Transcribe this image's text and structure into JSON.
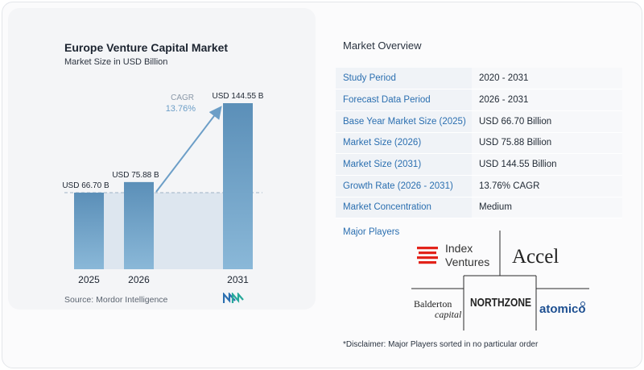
{
  "chart": {
    "title": "Europe Venture Capital Market",
    "subtitle": "Market Size in USD Billion",
    "source": "Source: Mordor Intelligence",
    "cagr_label": "CAGR",
    "cagr_value": "13.76%"
  },
  "chart_data": {
    "type": "bar",
    "title": "Europe Venture Capital Market",
    "subtitle": "Market Size in USD Billion",
    "categories": [
      "2025",
      "2026",
      "2031"
    ],
    "values": [
      66.7,
      75.88,
      144.55
    ],
    "data_labels": [
      "USD 66.70 B",
      "USD 75.88 B",
      "USD 144.55 B"
    ],
    "ylim": [
      0,
      150
    ],
    "annotation": "CAGR 13.76%",
    "colors": {
      "bar": "#5b8fb8",
      "bar_light": "#8ab2d1",
      "band": "#dde6ef",
      "arrow": "#6c9ec7"
    }
  },
  "overview": {
    "title": "Market Overview",
    "rows": [
      {
        "label": "Study Period",
        "value": "2020 - 2031"
      },
      {
        "label": "Forecast Data Period",
        "value": "2026 - 2031"
      },
      {
        "label": "Base Year Market Size (2025)",
        "value": "USD 66.70 Billion"
      },
      {
        "label": "Market Size (2026)",
        "value": "USD 75.88 Billion"
      },
      {
        "label": "Market Size (2031)",
        "value": "USD 144.55 Billion"
      },
      {
        "label": "Growth Rate (2026 - 2031)",
        "value": "13.76% CAGR"
      },
      {
        "label": "Market Concentration",
        "value": "Medium"
      }
    ]
  },
  "players": {
    "title": "Major Players",
    "logos": {
      "index_line1": "Index",
      "index_line2": "Ventures",
      "accel": "Accel",
      "balderton_line1": "Balderton",
      "balderton_line2": "capital",
      "northzone": "NORTHZONE",
      "atomico": "atomico"
    }
  },
  "disclaimer": "*Disclaimer: Major Players sorted in no particular order",
  "colors": {
    "accent": "#2b6fb0",
    "index_red": "#e2231a",
    "atomico_blue": "#1d4f91"
  }
}
